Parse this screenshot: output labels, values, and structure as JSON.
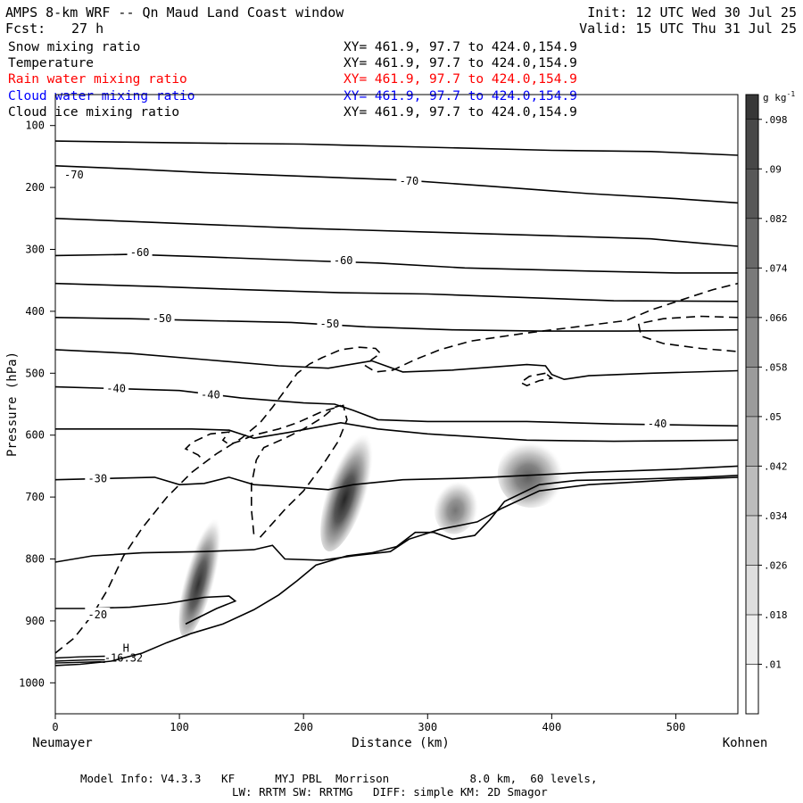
{
  "header": {
    "title": "AMPS 8-km WRF -- Qn Maud Land Coast window",
    "forecast_label": "Fcst:",
    "forecast_value": "27 h",
    "init": "Init: 12 UTC Wed 30 Jul 25",
    "valid": "Valid: 15 UTC Thu 31 Jul 25"
  },
  "fields": [
    {
      "name": "Snow mixing ratio",
      "xy": "XY= 461.9, 97.7 to 424.0,154.9",
      "color": "#000000"
    },
    {
      "name": "Temperature",
      "xy": "XY= 461.9, 97.7 to 424.0,154.9",
      "color": "#000000"
    },
    {
      "name": "Rain water mixing ratio",
      "xy": "XY= 461.9, 97.7 to 424.0,154.9",
      "color": "#ff0000"
    },
    {
      "name": "Cloud water mixing ratio",
      "xy": "XY= 461.9, 97.7 to 424.0,154.9",
      "color": "#0000ff"
    },
    {
      "name": "Cloud ice mixing ratio",
      "xy": "XY= 461.9, 97.7 to 424.0,154.9",
      "color": "#000000"
    }
  ],
  "chart_data": {
    "type": "cross-section",
    "ylabel": "Pressure (hPa)",
    "xlabel": "Distance (km)",
    "x_left_label": "Neumayer",
    "x_right_label": "Kohnen",
    "xlim": [
      0,
      550
    ],
    "ylim_top": 50,
    "ylim_bottom": 1050,
    "y_ticks": [
      100,
      200,
      300,
      400,
      500,
      600,
      700,
      800,
      900,
      1000
    ],
    "x_ticks": [
      0,
      100,
      200,
      300,
      400,
      500
    ],
    "colorbar_unit": "g kg",
    "colorbar_unit_exp": "-1",
    "colorbar_levels": [
      ".01",
      ".018",
      ".026",
      ".034",
      ".042",
      ".05",
      ".058",
      ".066",
      ".074",
      ".082",
      ".09",
      ".098"
    ],
    "temperature_contour_labels": [
      {
        "text": "-70",
        "x": 15,
        "p": 180
      },
      {
        "text": "-70",
        "x": 285,
        "p": 190
      },
      {
        "text": "-60",
        "x": 68,
        "p": 305
      },
      {
        "text": "-60",
        "x": 232,
        "p": 318
      },
      {
        "text": "-50",
        "x": 86,
        "p": 412
      },
      {
        "text": "-50",
        "x": 221,
        "p": 420
      },
      {
        "text": "-40",
        "x": 49,
        "p": 525
      },
      {
        "text": "-40",
        "x": 125,
        "p": 535
      },
      {
        "text": "-40",
        "x": 485,
        "p": 582
      },
      {
        "text": "-30",
        "x": 34,
        "p": 670
      },
      {
        "text": "-20",
        "x": 34,
        "p": 890
      }
    ],
    "annotations": [
      {
        "text": "H",
        "x": 57,
        "p": 944
      },
      {
        "text": "-16.32",
        "x": 55,
        "p": 960
      }
    ],
    "terrain_surface": [
      [
        0,
        972
      ],
      [
        20,
        970
      ],
      [
        45,
        965
      ],
      [
        70,
        952
      ],
      [
        90,
        935
      ],
      [
        110,
        920
      ],
      [
        135,
        905
      ],
      [
        160,
        882
      ],
      [
        180,
        858
      ],
      [
        195,
        835
      ],
      [
        210,
        810
      ],
      [
        235,
        795
      ],
      [
        255,
        790
      ],
      [
        275,
        780
      ],
      [
        290,
        757
      ],
      [
        305,
        757
      ],
      [
        320,
        768
      ],
      [
        338,
        762
      ],
      [
        350,
        737
      ],
      [
        362,
        707
      ],
      [
        390,
        680
      ],
      [
        420,
        673
      ],
      [
        470,
        671
      ],
      [
        520,
        668
      ],
      [
        550,
        665
      ]
    ],
    "snow_cells": [
      {
        "x": 110,
        "p": 880,
        "rx": 12,
        "rp": 48,
        "top_x": 126,
        "top_p": 760,
        "peak": 0.09
      },
      {
        "x": 228,
        "p": 735,
        "rx": 16,
        "rp": 55,
        "top_x": 245,
        "top_p": 630,
        "peak": 0.095
      },
      {
        "x": 322,
        "p": 725,
        "rx": 18,
        "rp": 35,
        "top_x": 325,
        "top_p": 700,
        "peak": 0.06
      },
      {
        "x": 375,
        "p": 680,
        "rx": 28,
        "rp": 30,
        "top_x": 395,
        "top_p": 640,
        "peak": 0.07
      }
    ]
  },
  "footer": {
    "line1": "Model Info: V4.3.3   KF      MYJ PBL  Morrison            8.0 km,  60 levels,",
    "line2": "LW: RRTM SW: RRTMG   DIFF: simple KM: 2D Smagor"
  }
}
